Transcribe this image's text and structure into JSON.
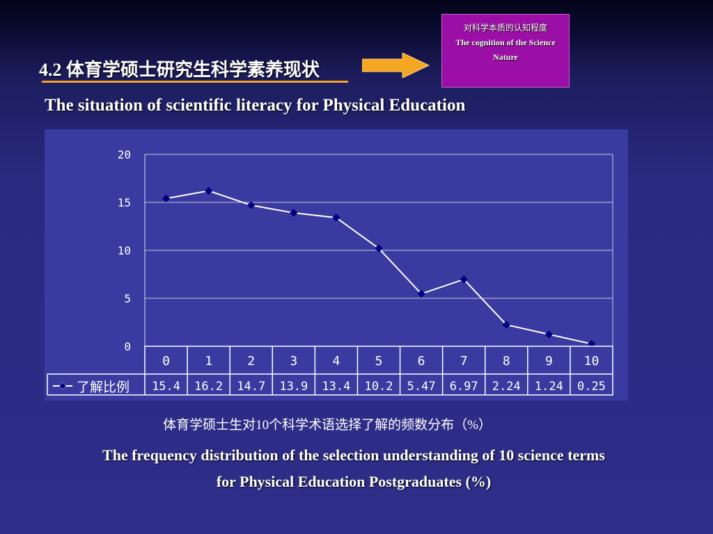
{
  "slide": {
    "title": "4.2 体育学硕士研究生科学素养现状",
    "subtitle": "The situation of scientific literacy for Physical Education",
    "callout_zh": "对科学本质的认知程度",
    "callout_en_1": "The cognition of the Science",
    "callout_en_2": "Nature",
    "caption_zh": "体育学硕士生对10个科学术语选择了解的频数分布（%）",
    "caption_en_1": "The frequency distribution of the selection understanding of 10 science terms",
    "caption_en_2": "for Physical Education Postgraduates (%)",
    "arrow_color": "#f5a623",
    "callout_color": "#9c0fa6"
  },
  "chart_data": {
    "type": "line",
    "x": [
      "0",
      "1",
      "2",
      "3",
      "4",
      "5",
      "6",
      "7",
      "8",
      "9",
      "10"
    ],
    "series": [
      {
        "name": "了解比例",
        "values": [
          15.4,
          16.2,
          14.7,
          13.9,
          13.4,
          10.2,
          5.47,
          6.97,
          2.24,
          1.24,
          0.25
        ],
        "value_labels": [
          "15.4",
          "16.2",
          "14.7",
          "13.9",
          "13.4",
          "10.2",
          "5.47",
          "6.97",
          "2.24",
          "1.24",
          "0.25"
        ],
        "color": "#ffffff",
        "marker_color": "#000080"
      }
    ],
    "yticks": [
      "0",
      "5",
      "10",
      "15",
      "20"
    ],
    "ylim": [
      0,
      20
    ],
    "grid": true,
    "legend": "data-table-left",
    "plot_bg": "#3a3aa0"
  }
}
